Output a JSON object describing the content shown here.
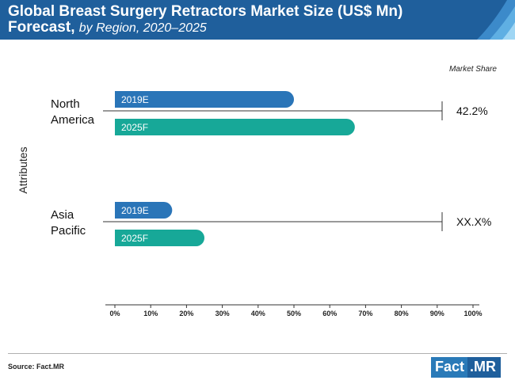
{
  "header": {
    "title_main": "Global Breast Surgery Retractors Market Size (US$ Mn)",
    "title_forecast": "Forecast,",
    "title_sub": "by Region, 2020–2025"
  },
  "chart_data": {
    "type": "bar",
    "orientation": "horizontal",
    "ylabel": "Attributes",
    "xlim": [
      0,
      100
    ],
    "x_ticks": [
      "0%",
      "10%",
      "20%",
      "30%",
      "40%",
      "50%",
      "60%",
      "70%",
      "80%",
      "90%",
      "100%"
    ],
    "market_share_label": "Market Share",
    "groups": [
      {
        "name": "North America",
        "name_lines": [
          "North",
          "America"
        ],
        "bars": [
          {
            "label": "2019E",
            "value": 50
          },
          {
            "label": "2025F",
            "value": 67
          }
        ],
        "market_share": "42.2%"
      },
      {
        "name": "Asia Pacific",
        "name_lines": [
          "Asia",
          "Pacific"
        ],
        "bars": [
          {
            "label": "2019E",
            "value": 16
          },
          {
            "label": "2025F",
            "value": 25
          }
        ],
        "market_share": "XX.X%"
      }
    ],
    "colors": {
      "2019E": "#2a75b8",
      "2025F": "#17a898"
    }
  },
  "footer": {
    "source": "Source: Fact.MR",
    "logo_part1": "Fact",
    "logo_part2": ".MR"
  }
}
